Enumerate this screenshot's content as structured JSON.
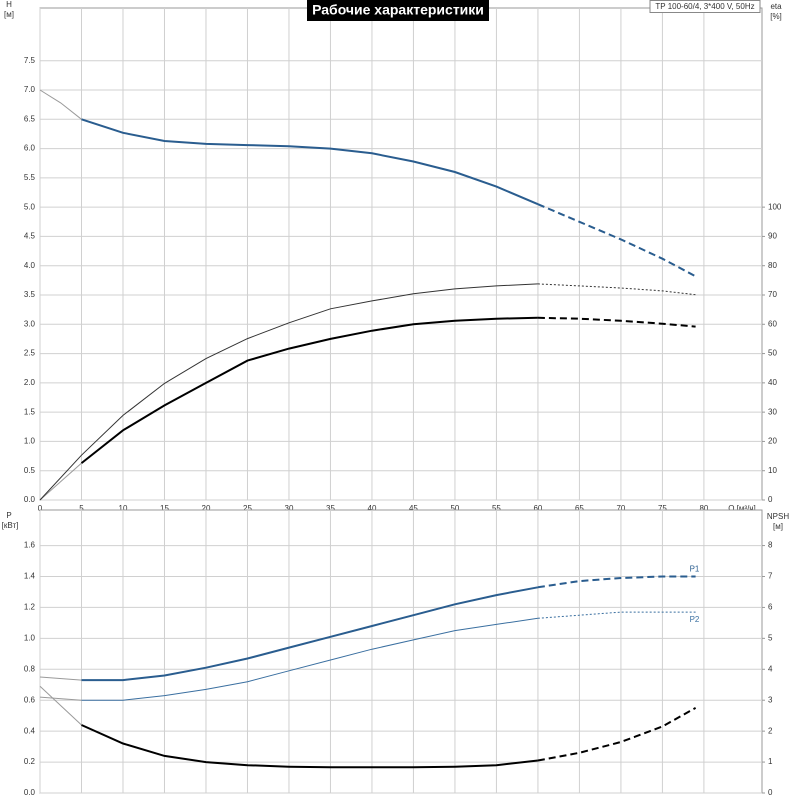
{
  "chart_data": [
    {
      "type": "line",
      "title": "Рабочие характеристики",
      "subtitle": "TP 100-60/4, 3*400 V, 50Hz",
      "ylabel": "H",
      "yunit": "[м]",
      "y2label": "eta",
      "y2unit": "[%]",
      "xlabel": "Q [м³/ч]",
      "xlim": [
        0,
        87
      ],
      "xticks": [
        0,
        5,
        10,
        15,
        20,
        25,
        30,
        35,
        40,
        45,
        50,
        55,
        60,
        65,
        70,
        75,
        80
      ],
      "ylim": [
        0,
        8.4
      ],
      "yticks": [
        {
          "value": 0,
          "label": "0.0"
        },
        {
          "value": 0.5,
          "label": "0.5"
        },
        {
          "value": 1,
          "label": "1.0"
        },
        {
          "value": 1.5,
          "label": "1.5"
        },
        {
          "value": 2,
          "label": "2.0"
        },
        {
          "value": 2.5,
          "label": "2.5"
        },
        {
          "value": 3,
          "label": "3.0"
        },
        {
          "value": 3.5,
          "label": "3.5"
        },
        {
          "value": 4,
          "label": "4.0"
        },
        {
          "value": 4.5,
          "label": "4.5"
        },
        {
          "value": 5,
          "label": "5.0"
        },
        {
          "value": 5.5,
          "label": "5.5"
        },
        {
          "value": 6,
          "label": "6.0"
        },
        {
          "value": 6.5,
          "label": "6.5"
        },
        {
          "value": 7,
          "label": "7.0"
        },
        {
          "value": 7.5,
          "label": "7.5"
        }
      ],
      "y2lim": [
        0,
        168
      ],
      "y2ticks": [
        0,
        10,
        20,
        30,
        40,
        50,
        60,
        70,
        80,
        90,
        100
      ],
      "grid": true,
      "series": [
        {
          "color": "#9a9a9a",
          "width": 1,
          "style": "solid",
          "x": [
            0,
            2.5,
            5
          ],
          "values": [
            7.0,
            6.78,
            6.5
          ]
        },
        {
          "color": "#2a5d8f",
          "width": 2,
          "style": "solid",
          "x": [
            5,
            10,
            15,
            20,
            25,
            30,
            35,
            40,
            45,
            50,
            55,
            60
          ],
          "values": [
            6.5,
            6.27,
            6.13,
            6.08,
            6.06,
            6.04,
            6.0,
            5.92,
            5.78,
            5.6,
            5.35,
            5.05
          ]
        },
        {
          "color": "#2a5d8f",
          "width": 2,
          "style": "dashed",
          "x": [
            60,
            65,
            70,
            75,
            79
          ],
          "values": [
            5.05,
            4.75,
            4.45,
            4.12,
            3.82
          ]
        },
        {
          "color": "#9a9a9a",
          "width": 1,
          "style": "solid",
          "axis": "y2",
          "x": [
            0,
            5
          ],
          "values": [
            0,
            12.6
          ]
        },
        {
          "color": "#000000",
          "width": 2,
          "style": "solid",
          "axis": "y2",
          "x": [
            5,
            10,
            15,
            20,
            25,
            30,
            35,
            40,
            45,
            50,
            55,
            60
          ],
          "values": [
            12.6,
            23.8,
            32.3,
            40,
            47.6,
            51.7,
            55,
            57.8,
            60,
            61.2,
            61.9,
            62.2
          ]
        },
        {
          "color": "#000000",
          "width": 2,
          "style": "dashed",
          "axis": "y2",
          "x": [
            60,
            65,
            70,
            75,
            79
          ],
          "values": [
            62.2,
            61.9,
            61.2,
            60.2,
            59.2
          ]
        },
        {
          "color": "#333333",
          "width": 1,
          "style": "solid",
          "axis": "y2",
          "x": [
            0,
            5,
            10,
            15,
            20,
            25,
            30,
            35,
            40,
            45,
            50,
            55,
            60
          ],
          "values": [
            0,
            15.3,
            28.9,
            39.8,
            48.3,
            55.1,
            60.5,
            65.3,
            68,
            70.4,
            72.1,
            73.1,
            73.8
          ]
        },
        {
          "color": "#333333",
          "width": 1,
          "style": "dotted",
          "axis": "y2",
          "x": [
            60,
            65,
            70,
            75,
            79
          ],
          "values": [
            73.8,
            73.1,
            72.4,
            71.4,
            70.1
          ]
        }
      ]
    },
    {
      "type": "line",
      "ylabel": "P",
      "yunit": "[кВт]",
      "y2label": "NPSH",
      "y2unit": "[м]",
      "xlim": [
        0,
        87
      ],
      "ylim": [
        0,
        1.83
      ],
      "yticks": [
        {
          "value": 0,
          "label": "0.0"
        },
        {
          "value": 0.2,
          "label": "0.2"
        },
        {
          "value": 0.4,
          "label": "0.4"
        },
        {
          "value": 0.6,
          "label": "0.6"
        },
        {
          "value": 0.8,
          "label": "0.8"
        },
        {
          "value": 1,
          "label": "1.0"
        },
        {
          "value": 1.2,
          "label": "1.2"
        },
        {
          "value": 1.4,
          "label": "1.4"
        },
        {
          "value": 1.6,
          "label": "1.6"
        }
      ],
      "y2lim": [
        0,
        9.15
      ],
      "y2ticks": [
        0,
        1,
        2,
        3,
        4,
        5,
        6,
        7,
        8
      ],
      "grid": true,
      "series": [
        {
          "color": "#9a9a9a",
          "width": 1,
          "style": "solid",
          "x": [
            0,
            5
          ],
          "values": [
            0.75,
            0.73
          ]
        },
        {
          "color": "#2a5d8f",
          "width": 2,
          "style": "solid",
          "x": [
            5,
            10,
            15,
            20,
            25,
            30,
            35,
            40,
            45,
            50,
            55,
            60
          ],
          "values": [
            0.73,
            0.73,
            0.76,
            0.81,
            0.87,
            0.94,
            1.01,
            1.08,
            1.15,
            1.22,
            1.28,
            1.33
          ]
        },
        {
          "name": "P1",
          "color": "#2a5d8f",
          "width": 2,
          "style": "dashed",
          "x": [
            60,
            65,
            70,
            75,
            79
          ],
          "values": [
            1.33,
            1.37,
            1.39,
            1.4,
            1.4
          ]
        },
        {
          "color": "#9a9a9a",
          "width": 1,
          "style": "solid",
          "x": [
            0,
            5
          ],
          "values": [
            0.62,
            0.6
          ]
        },
        {
          "color": "#3a6fa0",
          "width": 1,
          "style": "solid",
          "x": [
            5,
            10,
            15,
            20,
            25,
            30,
            35,
            40,
            45,
            50,
            55,
            60
          ],
          "values": [
            0.6,
            0.6,
            0.63,
            0.67,
            0.72,
            0.79,
            0.86,
            0.93,
            0.99,
            1.05,
            1.09,
            1.13
          ]
        },
        {
          "name": "P2",
          "color": "#3a6fa0",
          "width": 1,
          "style": "dotted",
          "x": [
            60,
            65,
            70,
            75,
            79
          ],
          "values": [
            1.13,
            1.15,
            1.17,
            1.17,
            1.17
          ]
        },
        {
          "color": "#9a9a9a",
          "width": 1,
          "style": "solid",
          "axis": "y2",
          "x": [
            0,
            5
          ],
          "values": [
            3.45,
            2.2
          ]
        },
        {
          "color": "#000000",
          "width": 2,
          "style": "solid",
          "axis": "y2",
          "x": [
            5,
            10,
            15,
            20,
            25,
            30,
            35,
            40,
            45,
            50,
            55,
            60
          ],
          "values": [
            2.2,
            1.6,
            1.2,
            1.0,
            0.9,
            0.85,
            0.83,
            0.83,
            0.83,
            0.85,
            0.9,
            1.05
          ]
        },
        {
          "color": "#000000",
          "width": 2,
          "style": "dashed",
          "axis": "y2",
          "x": [
            60,
            65,
            70,
            75,
            79
          ],
          "values": [
            1.05,
            1.3,
            1.65,
            2.15,
            2.75
          ]
        }
      ]
    }
  ]
}
